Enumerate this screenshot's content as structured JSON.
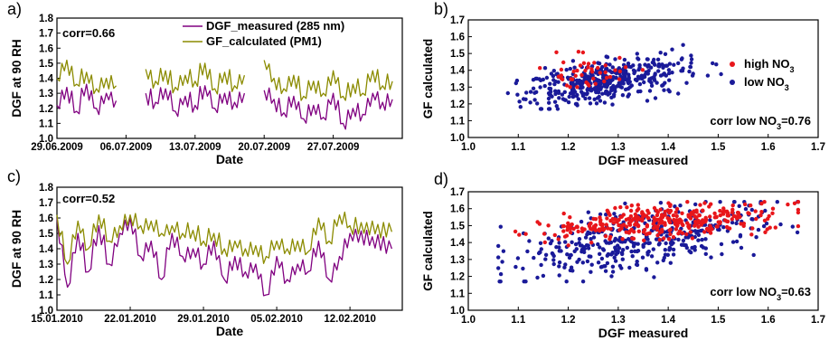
{
  "chart_data": [
    {
      "panel": "a)",
      "type": "line",
      "xlabel": "Date",
      "ylabel": "DGF at 90 RH",
      "ylim": [
        1.0,
        1.8
      ],
      "yticks": [
        "1.0",
        "1.1",
        "1.2",
        "1.3",
        "1.4",
        "1.5",
        "1.6",
        "1.7",
        "1.8"
      ],
      "xrange": [
        "2009-06-29",
        "2009-08-03"
      ],
      "xticks": [
        {
          "date": "2009-06-29",
          "label": "29.06.2009"
        },
        {
          "date": "2009-07-06",
          "label": "06.07.2009"
        },
        {
          "date": "2009-07-13",
          "label": "13.07.2009"
        },
        {
          "date": "2009-07-20",
          "label": "20.07.2009"
        },
        {
          "date": "2009-07-27",
          "label": "27.07.2009"
        }
      ],
      "annotation": "corr=0.66",
      "legend": [
        "DGF_measured (285 nm)",
        "GF_calculated (PM1)"
      ],
      "series": [
        {
          "name": "DGF_measured (285 nm)",
          "color": "#800080",
          "x": [
            "2009-06-29",
            "2009-06-30",
            "2009-07-01",
            "2009-07-02",
            "2009-07-03",
            "2009-07-04",
            "2009-07-05",
            null,
            "2009-07-08",
            "2009-07-09",
            "2009-07-10",
            "2009-07-11",
            "2009-07-12",
            "2009-07-13",
            "2009-07-14",
            "2009-07-15",
            "2009-07-16",
            "2009-07-17",
            "2009-07-18",
            null,
            "2009-07-20",
            "2009-07-21",
            "2009-07-22",
            "2009-07-23",
            "2009-07-24",
            "2009-07-25",
            "2009-07-26",
            "2009-07-27",
            "2009-07-28",
            "2009-07-29",
            "2009-07-30",
            "2009-07-31",
            "2009-08-01",
            "2009-08-02"
          ],
          "values": [
            1.22,
            1.34,
            1.18,
            1.36,
            1.2,
            1.3,
            1.25,
            null,
            1.3,
            1.24,
            1.33,
            1.18,
            1.28,
            1.22,
            1.35,
            1.2,
            1.3,
            1.24,
            1.3,
            null,
            1.32,
            1.26,
            1.17,
            1.28,
            1.13,
            1.22,
            1.14,
            1.3,
            1.1,
            1.2,
            1.16,
            1.3,
            1.24,
            1.26
          ]
        },
        {
          "name": "GF_calculated (PM1)",
          "color": "#8b8b00",
          "x": [
            "2009-06-29",
            "2009-06-30",
            "2009-07-01",
            "2009-07-02",
            "2009-07-03",
            "2009-07-04",
            "2009-07-05",
            null,
            "2009-07-08",
            "2009-07-09",
            "2009-07-10",
            "2009-07-11",
            "2009-07-12",
            "2009-07-13",
            "2009-07-14",
            "2009-07-15",
            "2009-07-16",
            "2009-07-17",
            "2009-07-18",
            null,
            "2009-07-20",
            "2009-07-21",
            "2009-07-22",
            "2009-07-23",
            "2009-07-24",
            "2009-07-25",
            "2009-07-26",
            "2009-07-27",
            "2009-07-28",
            "2009-07-29",
            "2009-07-30",
            "2009-07-31",
            "2009-08-01",
            "2009-08-02"
          ],
          "values": [
            1.4,
            1.52,
            1.36,
            1.44,
            1.33,
            1.4,
            1.35,
            null,
            1.46,
            1.38,
            1.45,
            1.34,
            1.42,
            1.38,
            1.5,
            1.33,
            1.44,
            1.35,
            1.42,
            null,
            1.52,
            1.4,
            1.33,
            1.42,
            1.28,
            1.38,
            1.3,
            1.45,
            1.28,
            1.36,
            1.3,
            1.45,
            1.35,
            1.38
          ]
        }
      ]
    },
    {
      "panel": "b)",
      "type": "scatter",
      "xlabel": "DGF measured",
      "ylabel": "GF calculated",
      "xlim": [
        1.0,
        1.7
      ],
      "ylim": [
        1.0,
        1.7
      ],
      "xticks": [
        "1.0",
        "1.1",
        "1.2",
        "1.3",
        "1.4",
        "1.5",
        "1.6",
        "1.7"
      ],
      "yticks": [
        "1.0",
        "1.1",
        "1.2",
        "1.3",
        "1.4",
        "1.5",
        "1.6",
        "1.7"
      ],
      "legend": [
        "high NO3",
        "low NO3"
      ],
      "annotation": "corr low NO3=0.76",
      "series": [
        {
          "name": "high NO3",
          "color": "#e8161b",
          "center": [
            1.24,
            1.4
          ],
          "spread": [
            0.05,
            0.06
          ],
          "n": 45
        },
        {
          "name": "low NO3",
          "color": "#1a1a99",
          "center": [
            1.28,
            1.34
          ],
          "spread": [
            0.08,
            0.06
          ],
          "n": 420
        }
      ]
    },
    {
      "panel": "c)",
      "type": "line",
      "xlabel": "Date",
      "ylabel": "DGF at 90 RH",
      "ylim": [
        1.0,
        1.8
      ],
      "yticks": [
        "1.0",
        "1.1",
        "1.2",
        "1.3",
        "1.4",
        "1.5",
        "1.6",
        "1.7",
        "1.8"
      ],
      "xrange": [
        "2010-01-15",
        "2010-02-17"
      ],
      "xticks": [
        {
          "date": "2010-01-15",
          "label": "15.01.2010"
        },
        {
          "date": "2010-01-22",
          "label": "22.01.2010"
        },
        {
          "date": "2010-01-29",
          "label": "29.01.2010"
        },
        {
          "date": "2010-02-05",
          "label": "05.02.2010"
        },
        {
          "date": "2010-02-12",
          "label": "12.02.2010"
        }
      ],
      "annotation": "corr=0.52",
      "series": [
        {
          "name": "DGF_measured (285 nm)",
          "color": "#800080",
          "x": [
            "2010-01-15",
            "2010-01-16",
            "2010-01-17",
            "2010-01-18",
            "2010-01-19",
            "2010-01-20",
            "2010-01-21",
            "2010-01-22",
            "2010-01-23",
            "2010-01-24",
            "2010-01-25",
            "2010-01-26",
            "2010-01-27",
            "2010-01-28",
            "2010-01-29",
            "2010-01-30",
            "2010-01-31",
            "2010-02-01",
            "2010-02-02",
            "2010-02-03",
            "2010-02-04",
            "2010-02-05",
            "2010-02-06",
            "2010-02-07",
            "2010-02-08",
            "2010-02-09",
            "2010-02-10",
            "2010-02-11",
            "2010-02-12",
            "2010-02-16"
          ],
          "values": [
            1.6,
            1.15,
            1.5,
            1.25,
            1.55,
            1.3,
            1.5,
            1.6,
            1.35,
            1.45,
            1.2,
            1.5,
            1.35,
            1.4,
            1.3,
            1.45,
            1.2,
            1.35,
            1.25,
            1.3,
            1.1,
            1.35,
            1.2,
            1.3,
            1.25,
            1.45,
            1.2,
            1.35,
            1.5,
            1.4
          ]
        },
        {
          "name": "GF_calculated (PM1)",
          "color": "#8b8b00",
          "x": [
            "2010-01-15",
            "2010-01-16",
            "2010-01-17",
            "2010-01-18",
            "2010-01-19",
            "2010-01-20",
            "2010-01-21",
            "2010-01-22",
            "2010-01-23",
            "2010-01-24",
            "2010-01-25",
            "2010-01-26",
            "2010-01-27",
            "2010-01-28",
            "2010-01-29",
            "2010-01-30",
            "2010-01-31",
            "2010-02-01",
            "2010-02-02",
            "2010-02-03",
            "2010-02-04",
            "2010-02-05",
            "2010-02-06",
            "2010-02-07",
            "2010-02-08",
            "2010-02-09",
            "2010-02-10",
            "2010-02-11",
            "2010-02-12",
            "2010-02-16"
          ],
          "values": [
            1.62,
            1.3,
            1.58,
            1.4,
            1.62,
            1.45,
            1.55,
            1.62,
            1.55,
            1.58,
            1.5,
            1.55,
            1.5,
            1.52,
            1.45,
            1.5,
            1.4,
            1.45,
            1.4,
            1.42,
            1.35,
            1.45,
            1.4,
            1.45,
            1.38,
            1.6,
            1.45,
            1.62,
            1.55,
            1.51
          ]
        }
      ]
    },
    {
      "panel": "d)",
      "type": "scatter",
      "xlabel": "DGF measured",
      "ylabel": "GF calculated",
      "xlim": [
        1.0,
        1.7
      ],
      "ylim": [
        1.0,
        1.7
      ],
      "xticks": [
        "1.0",
        "1.1",
        "1.2",
        "1.3",
        "1.4",
        "1.5",
        "1.6",
        "1.7"
      ],
      "yticks": [
        "1.0",
        "1.1",
        "1.2",
        "1.3",
        "1.4",
        "1.5",
        "1.6",
        "1.7"
      ],
      "annotation": "corr low NO3=0.63",
      "series": [
        {
          "name": "high NO3",
          "color": "#e8161b",
          "center": [
            1.4,
            1.53
          ],
          "spread": [
            0.12,
            0.05
          ],
          "n": 330
        },
        {
          "name": "low NO3",
          "color": "#1a1a99",
          "center": [
            1.35,
            1.42
          ],
          "spread": [
            0.13,
            0.09
          ],
          "n": 400
        }
      ]
    }
  ]
}
